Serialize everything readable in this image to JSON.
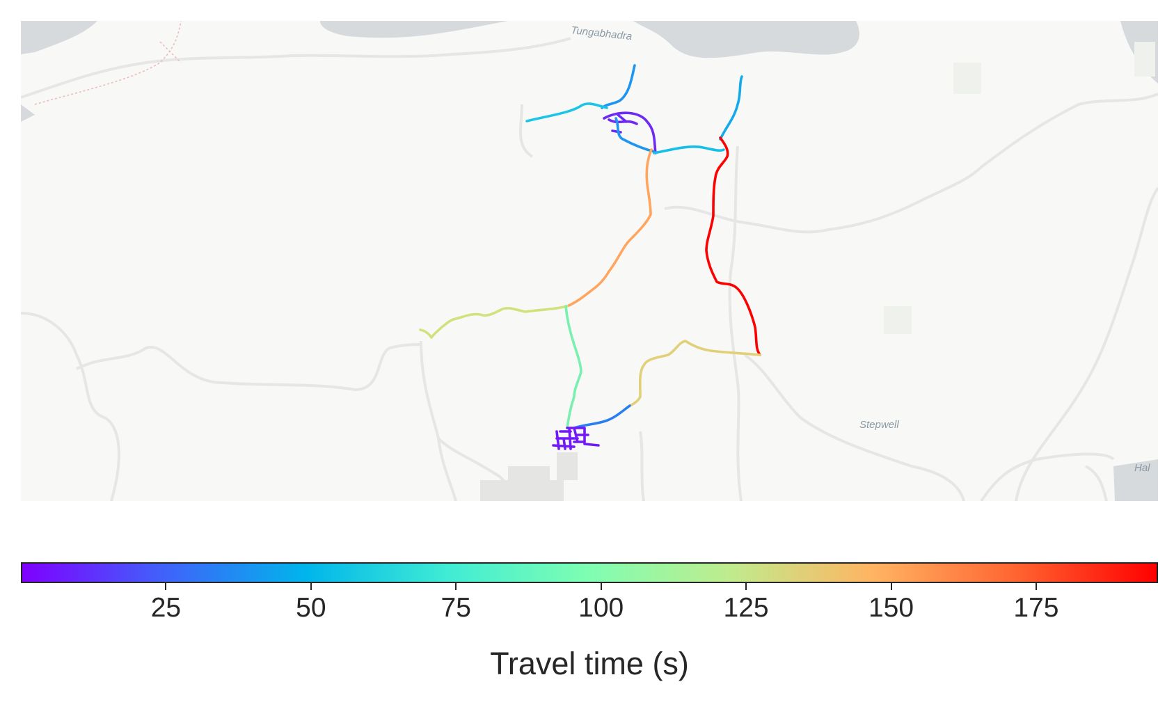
{
  "map": {
    "basemap_labels": [
      "Tungabhadra",
      "Stepwell",
      "Hal"
    ],
    "colors": {
      "background": "#f8f8f7",
      "water": "#d6dadd",
      "roads": "#e6e6e6"
    },
    "routes": [
      {
        "color_value": 40,
        "color": "#1e95f0"
      },
      {
        "color_value": 60,
        "color": "#1cc4e6"
      },
      {
        "color_value": 8,
        "color": "#6d2af5"
      },
      {
        "color_value": 40,
        "color": "#1e95f0"
      },
      {
        "color_value": 58,
        "color": "#15bfe8"
      },
      {
        "color_value": 50,
        "color": "#13a9ea"
      },
      {
        "color_value": 196,
        "color": "#ff0000"
      },
      {
        "color_value": 145,
        "color": "#ffa55e"
      },
      {
        "color_value": 125,
        "color": "#cfe27c"
      },
      {
        "color_value": 95,
        "color": "#7af0b0"
      },
      {
        "color_value": 130,
        "color": "#e2d078"
      },
      {
        "color_value": 40,
        "color": "#2a7ff0"
      },
      {
        "color_value": 5,
        "color": "#7219f8"
      }
    ]
  },
  "colorbar": {
    "label": "Travel time (s)",
    "min": 0,
    "max": 196,
    "ticks": [
      "25",
      "50",
      "75",
      "100",
      "125",
      "150",
      "175"
    ],
    "colormap": "rainbow",
    "colors": [
      "#7f00ff",
      "#4062fa",
      "#00b5eb",
      "#40ecd4",
      "#7ffeb2",
      "#c0eb8d",
      "#ffb462",
      "#ff6531",
      "#ff0000"
    ]
  }
}
